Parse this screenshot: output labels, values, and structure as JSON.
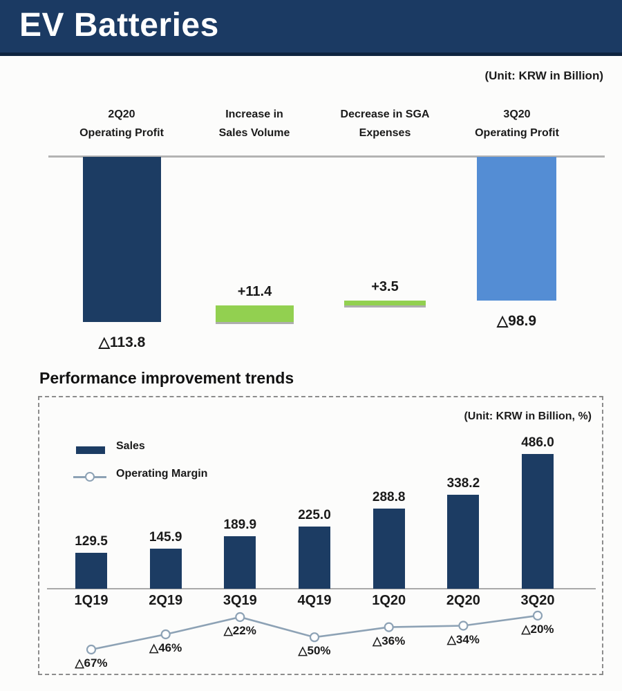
{
  "header": {
    "title": "EV Batteries"
  },
  "waterfall_section": {
    "unit_note": "(Unit: KRW in Billion)",
    "columns": [
      {
        "line1": "2Q20",
        "line2": "Operating Profit"
      },
      {
        "line1": "Increase in",
        "line2": "Sales Volume"
      },
      {
        "line1": "Decrease in SGA",
        "line2": "Expenses"
      },
      {
        "line1": "3Q20",
        "line2": "Operating Profit"
      }
    ]
  },
  "trends_section": {
    "title": "Performance improvement trends",
    "unit_note": "(Unit: KRW in Billion, %)"
  },
  "colors": {
    "header_bg": "#1b3a63",
    "navy": "#1c3c63",
    "light_blue": "#548dd4",
    "green": "#92d050",
    "line": "#8da2b5",
    "baseline": "#b3b3b3",
    "text": "#1a1a1a"
  },
  "chart_data": [
    {
      "type": "bar",
      "subtype": "waterfall",
      "title": "EV Batteries operating profit bridge 2Q20 to 3Q20",
      "unit": "KRW in Billion",
      "categories": [
        "2Q20 Operating Profit",
        "Increase in Sales Volume",
        "Decrease in SGA Expenses",
        "3Q20 Operating Profit"
      ],
      "values": [
        -113.8,
        11.4,
        3.5,
        -98.9
      ],
      "roles": [
        "total",
        "delta",
        "delta",
        "total"
      ],
      "data_labels": [
        "△113.8",
        "+11.4",
        "+3.5",
        "△98.9"
      ],
      "bar_colors": [
        "#1c3c63",
        "#92d050",
        "#92d050",
        "#548dd4"
      ],
      "baseline": 0,
      "grid": false
    },
    {
      "type": "bar+line",
      "title": "Performance improvement trends",
      "unit": "KRW in Billion, %",
      "categories": [
        "1Q19",
        "2Q19",
        "3Q19",
        "4Q19",
        "1Q20",
        "2Q20",
        "3Q20"
      ],
      "series": [
        {
          "name": "Sales",
          "type": "bar",
          "values": [
            129.5,
            145.9,
            189.9,
            225.0,
            288.8,
            338.2,
            486.0
          ],
          "data_labels": [
            "129.5",
            "145.9",
            "189.9",
            "225.0",
            "288.8",
            "338.2",
            "486.0"
          ]
        },
        {
          "name": "Operating Margin",
          "type": "line",
          "values": [
            -67,
            -46,
            -22,
            -50,
            -36,
            -34,
            -20
          ],
          "data_labels": [
            "△67%",
            "△46%",
            "△22%",
            "△50%",
            "△36%",
            "△34%",
            "△20%"
          ]
        }
      ],
      "legend_position": "top-left",
      "grid": false
    }
  ]
}
